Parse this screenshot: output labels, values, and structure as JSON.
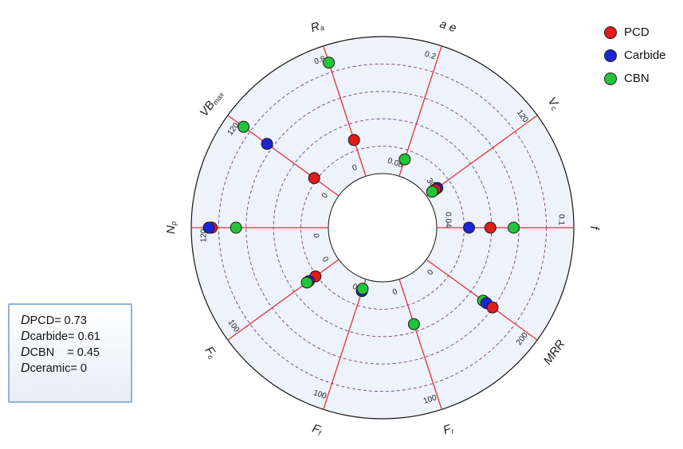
{
  "chart_data": {
    "type": "scatter",
    "subtype": "radar",
    "title": "",
    "rings": 4,
    "colors": {
      "PCD": "#e21b1b",
      "Carbide": "#1c25d6",
      "CBN": "#22c43a",
      "axis_line": "#e53030",
      "ring": "#7a3d7a",
      "panel": "#eef2fb"
    },
    "axes": [
      {
        "name": "Ra",
        "sub": "a",
        "main": "R",
        "min_label": "0",
        "max_label": "0.8",
        "min": 0,
        "max": 0.8,
        "points": [
          {
            "series": "PCD",
            "value": 0.24
          },
          {
            "series": "CBN",
            "value": 0.8
          }
        ]
      },
      {
        "name": "ae",
        "main": "",
        "sub": "",
        "label_text": "a e",
        "min_label": "0.08",
        "max_label": "0.2",
        "min": 0.08,
        "max": 0.2,
        "points": [
          {
            "series": "CBN",
            "value": 0.095
          }
        ]
      },
      {
        "name": "Vc",
        "main": "V",
        "sub": "c",
        "min_label": "30",
        "max_label": "120",
        "min": 30,
        "max": 120,
        "points": [
          {
            "series": "Carbide",
            "value": 38
          },
          {
            "series": "PCD",
            "value": 36
          },
          {
            "series": "CBN",
            "value": 33
          }
        ]
      },
      {
        "name": "f",
        "main": "f",
        "sub": "",
        "min_label": "0.04",
        "max_label": "0.1",
        "min": 0.04,
        "max": 0.1,
        "points": [
          {
            "series": "Carbide",
            "value": 0.055
          },
          {
            "series": "PCD",
            "value": 0.066
          },
          {
            "series": "CBN",
            "value": 0.078
          }
        ]
      },
      {
        "name": "MRR",
        "main": "MRR",
        "sub": "",
        "min_label": "0",
        "max_label": "200",
        "min": 0,
        "max": 200,
        "points": [
          {
            "series": "CBN",
            "value": 115
          },
          {
            "series": "Carbide",
            "value": 122
          },
          {
            "series": "PCD",
            "value": 135
          }
        ]
      },
      {
        "name": "Fr",
        "main": "F",
        "sub": "r",
        "min_label": "0",
        "max_label": "100",
        "min": 0,
        "max": 100,
        "points": [
          {
            "series": "CBN",
            "value": 38
          }
        ]
      },
      {
        "name": "Ff",
        "main": "F",
        "sub": "f",
        "min_label": "0",
        "max_label": "100",
        "min": 0,
        "max": 100,
        "points": [
          {
            "series": "Carbide",
            "value": 8
          },
          {
            "series": "CBN",
            "value": 6
          }
        ]
      },
      {
        "name": "Fc",
        "main": "F",
        "sub": "c",
        "min_label": "0",
        "max_label": "100",
        "min": 0,
        "max": 100,
        "points": [
          {
            "series": "PCD",
            "value": 22
          },
          {
            "series": "Carbide",
            "value": 29
          },
          {
            "series": "CBN",
            "value": 31
          }
        ]
      },
      {
        "name": "Np",
        "main": "N",
        "sub": "p",
        "min_label": "0",
        "max_label": "120",
        "min": 0,
        "max": 120,
        "points": [
          {
            "series": "PCD",
            "value": 117
          },
          {
            "series": "Carbide",
            "value": 120
          },
          {
            "series": "CBN",
            "value": 92
          }
        ]
      },
      {
        "name": "VBmax",
        "main": "VB",
        "sub": "max",
        "min_label": "0",
        "max_label": "120",
        "min": 0,
        "max": 120,
        "points": [
          {
            "series": "PCD",
            "value": 28
          },
          {
            "series": "Carbide",
            "value": 88
          },
          {
            "series": "CBN",
            "value": 118
          }
        ]
      }
    ],
    "legend": {
      "position": "top-right",
      "items": [
        {
          "label": "PCD",
          "series": "PCD"
        },
        {
          "label": "Carbide",
          "series": "Carbide"
        },
        {
          "label": "CBN",
          "series": "CBN"
        }
      ]
    }
  },
  "dbox": {
    "rows": [
      {
        "sym": "D",
        "sub": "PCD",
        "eq": "= 0.73"
      },
      {
        "sym": "D",
        "sub": "carbide",
        "eq": "= 0.61"
      },
      {
        "sym": "D",
        "sub": "CBN",
        "eq": "    = 0.45"
      },
      {
        "sym": "D",
        "sub": "ceramic",
        "eq": "= 0"
      }
    ]
  }
}
